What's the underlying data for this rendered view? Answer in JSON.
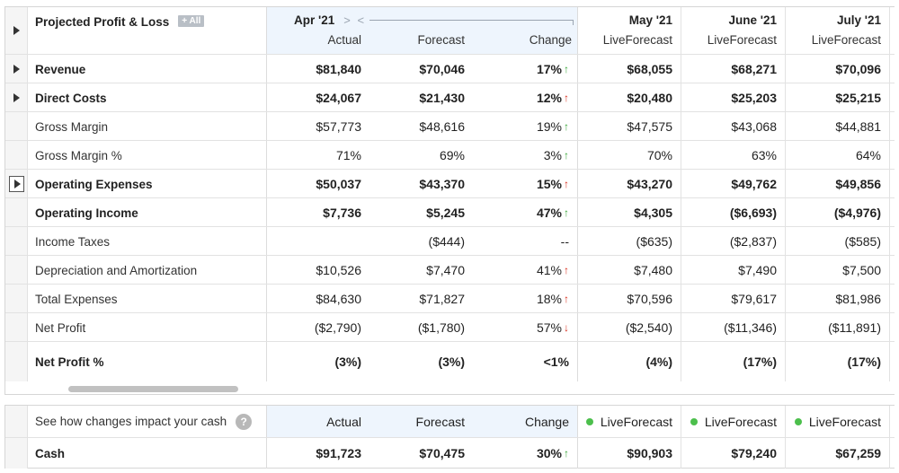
{
  "header": {
    "title": "Projected Profit & Loss",
    "all_badge": "+ All",
    "apr_month": "Apr '21",
    "apr_nav": "> <",
    "sub_actual": "Actual",
    "sub_forecast": "Forecast",
    "sub_change": "Change",
    "months": [
      {
        "name": "May '21",
        "sub": "LiveForecast"
      },
      {
        "name": "June '21",
        "sub": "LiveForecast"
      },
      {
        "name": "July '21",
        "sub": "LiveForecast"
      }
    ]
  },
  "rows": [
    {
      "label": "Revenue",
      "actual": "$81,840",
      "forecast": "$70,046",
      "change": "17%",
      "arrow": "↑",
      "may": "$68,055",
      "jun": "$68,271",
      "jul": "$70,096"
    },
    {
      "label": "Direct Costs",
      "actual": "$24,067",
      "forecast": "$21,430",
      "change": "12%",
      "arrow": "↑",
      "may": "$20,480",
      "jun": "$25,203",
      "jul": "$25,215"
    },
    {
      "label": "Gross Margin",
      "actual": "$57,773",
      "forecast": "$48,616",
      "change": "19%",
      "arrow": "↑",
      "may": "$47,575",
      "jun": "$43,068",
      "jul": "$44,881"
    },
    {
      "label": "Gross Margin %",
      "actual": "71%",
      "forecast": "69%",
      "change": "3%",
      "arrow": "↑",
      "may": "70%",
      "jun": "63%",
      "jul": "64%"
    },
    {
      "label": "Operating Expenses",
      "actual": "$50,037",
      "forecast": "$43,370",
      "change": "15%",
      "arrow": "↑",
      "may": "$43,270",
      "jun": "$49,762",
      "jul": "$49,856"
    },
    {
      "label": "Operating Income",
      "actual": "$7,736",
      "forecast": "$5,245",
      "change": "47%",
      "arrow": "↑",
      "may": "$4,305",
      "jun": "($6,693)",
      "jul": "($4,976)"
    },
    {
      "label": "Income Taxes",
      "actual": "",
      "forecast": "($444)",
      "change": "--",
      "arrow": "",
      "may": "($635)",
      "jun": "($2,837)",
      "jul": "($585)"
    },
    {
      "label": "Depreciation and Amortization",
      "actual": "$10,526",
      "forecast": "$7,470",
      "change": "41%",
      "arrow": "↑",
      "may": "$7,480",
      "jun": "$7,490",
      "jul": "$7,500"
    },
    {
      "label": "Total Expenses",
      "actual": "$84,630",
      "forecast": "$71,827",
      "change": "18%",
      "arrow": "↑",
      "may": "$70,596",
      "jun": "$79,617",
      "jul": "$81,986"
    },
    {
      "label": "Net Profit",
      "actual": "($2,790)",
      "forecast": "($1,780)",
      "change": "57%",
      "arrow": "↓",
      "may": "($2,540)",
      "jun": "($11,346)",
      "jul": "($11,891)"
    },
    {
      "label": "Net Profit %",
      "actual": "(3%)",
      "forecast": "(3%)",
      "change": "<1%",
      "arrow": "",
      "may": "(4%)",
      "jun": "(17%)",
      "jul": "(17%)"
    }
  ],
  "cash_section": {
    "prompt": "See how changes impact your cash",
    "help_glyph": "?",
    "sub_actual": "Actual",
    "sub_forecast": "Forecast",
    "sub_change": "Change",
    "live_label": "LiveForecast",
    "row": {
      "label": "Cash",
      "actual": "$91,723",
      "forecast": "$70,475",
      "change": "30%",
      "arrow": "↑",
      "may": "$90,903",
      "jun": "$79,240",
      "jul": "$67,259"
    }
  },
  "colors": {
    "up_green": "#3aa63a",
    "up_red": "#d9301f",
    "live_dot": "#4cbf4c",
    "apr_header_bg": "#eef5fd"
  }
}
